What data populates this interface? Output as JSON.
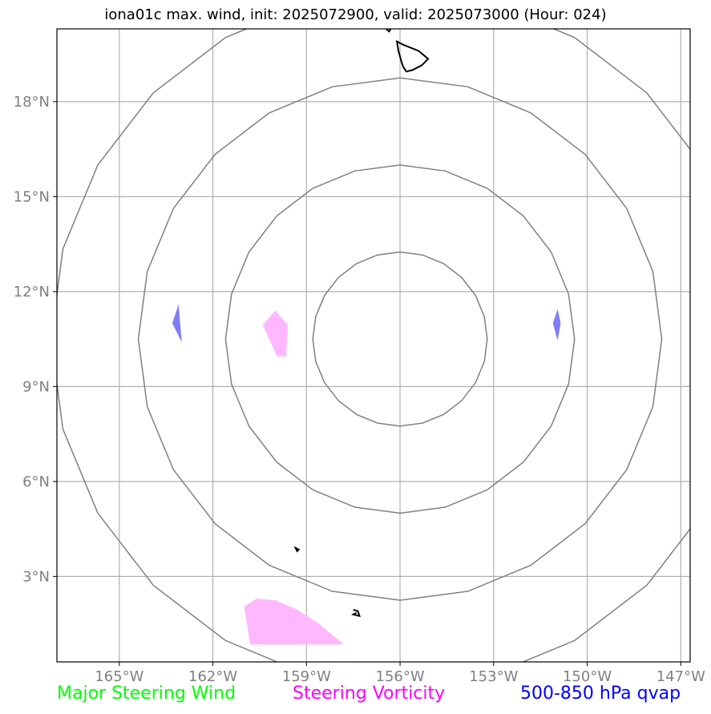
{
  "title": "iona01c max. wind, init: 2025072900, valid: 2025073000 (Hour: 024)",
  "map": {
    "lon_range": [
      -167,
      -146.7
    ],
    "lat_range": [
      0.3,
      20.3
    ],
    "lon_ticks": [
      {
        "value": -165,
        "label": "165°W"
      },
      {
        "value": -162,
        "label": "162°W"
      },
      {
        "value": -159,
        "label": "159°W"
      },
      {
        "value": -156,
        "label": "156°W"
      },
      {
        "value": -153,
        "label": "153°W"
      },
      {
        "value": -150,
        "label": "150°W"
      },
      {
        "value": -147,
        "label": "147°W"
      }
    ],
    "lat_ticks": [
      {
        "value": 3,
        "label": "3°N"
      },
      {
        "value": 6,
        "label": "6°N"
      },
      {
        "value": 9,
        "label": "9°N"
      },
      {
        "value": 12,
        "label": "12°N"
      },
      {
        "value": 15,
        "label": "15°N"
      },
      {
        "value": 18,
        "label": "18°N"
      }
    ],
    "range_rings_center": {
      "lon": -156.0,
      "lat": 10.5
    },
    "range_rings_radius_deg_lat": [
      2.75,
      5.5,
      8.25,
      11.0
    ],
    "colors": {
      "grid": "#b0b0b0",
      "rings": "#808080",
      "coast": "#000000",
      "vorticity": "#ffb8ff",
      "qvap": "#7f7ff5"
    },
    "features": {
      "big_island": [
        [
          -156.1,
          19.9
        ],
        [
          -155.9,
          19.8
        ],
        [
          -155.4,
          19.6
        ],
        [
          -155.1,
          19.35
        ],
        [
          -155.3,
          19.15
        ],
        [
          -155.6,
          19.0
        ],
        [
          -155.8,
          18.95
        ],
        [
          -155.9,
          19.1
        ],
        [
          -155.95,
          19.25
        ],
        [
          -156.05,
          19.6
        ]
      ],
      "island_top": [
        [
          -156.45,
          20.3
        ],
        [
          -156.35,
          20.22
        ],
        [
          -156.3,
          20.3
        ]
      ],
      "islet_a": [
        [
          -159.35,
          3.9
        ],
        [
          -159.25,
          3.85
        ],
        [
          -159.3,
          3.8
        ]
      ],
      "islet_b": [
        [
          -157.5,
          1.95
        ],
        [
          -157.35,
          1.9
        ],
        [
          -157.3,
          1.75
        ],
        [
          -157.5,
          1.8
        ],
        [
          -157.4,
          1.85
        ]
      ],
      "vort_patch_1": [
        [
          -160.4,
          10.95
        ],
        [
          -160.0,
          11.4
        ],
        [
          -159.6,
          10.95
        ],
        [
          -159.65,
          9.95
        ],
        [
          -159.95,
          9.95
        ]
      ],
      "vort_patch_2": [
        [
          -161.0,
          2.05
        ],
        [
          -160.6,
          2.3
        ],
        [
          -160.0,
          2.25
        ],
        [
          -159.3,
          1.95
        ],
        [
          -158.6,
          1.5
        ],
        [
          -157.8,
          0.85
        ],
        [
          -160.8,
          0.85
        ]
      ],
      "qvap_patch_1": [
        [
          -163.1,
          11.6
        ],
        [
          -163.0,
          10.4
        ],
        [
          -163.3,
          11.0
        ]
      ],
      "qvap_patch_2": [
        [
          -150.95,
          11.45
        ],
        [
          -150.85,
          11.0
        ],
        [
          -150.95,
          10.45
        ],
        [
          -151.1,
          11.0
        ]
      ]
    }
  },
  "legend": {
    "major_steering_wind": {
      "label": "Major Steering Wind",
      "color": "#00ff00"
    },
    "steering_vorticity": {
      "label": "Steering Vorticity",
      "color": "#ff00ff"
    },
    "qvap": {
      "label": "500-850 hPa qvap",
      "color": "#0000ff"
    }
  }
}
